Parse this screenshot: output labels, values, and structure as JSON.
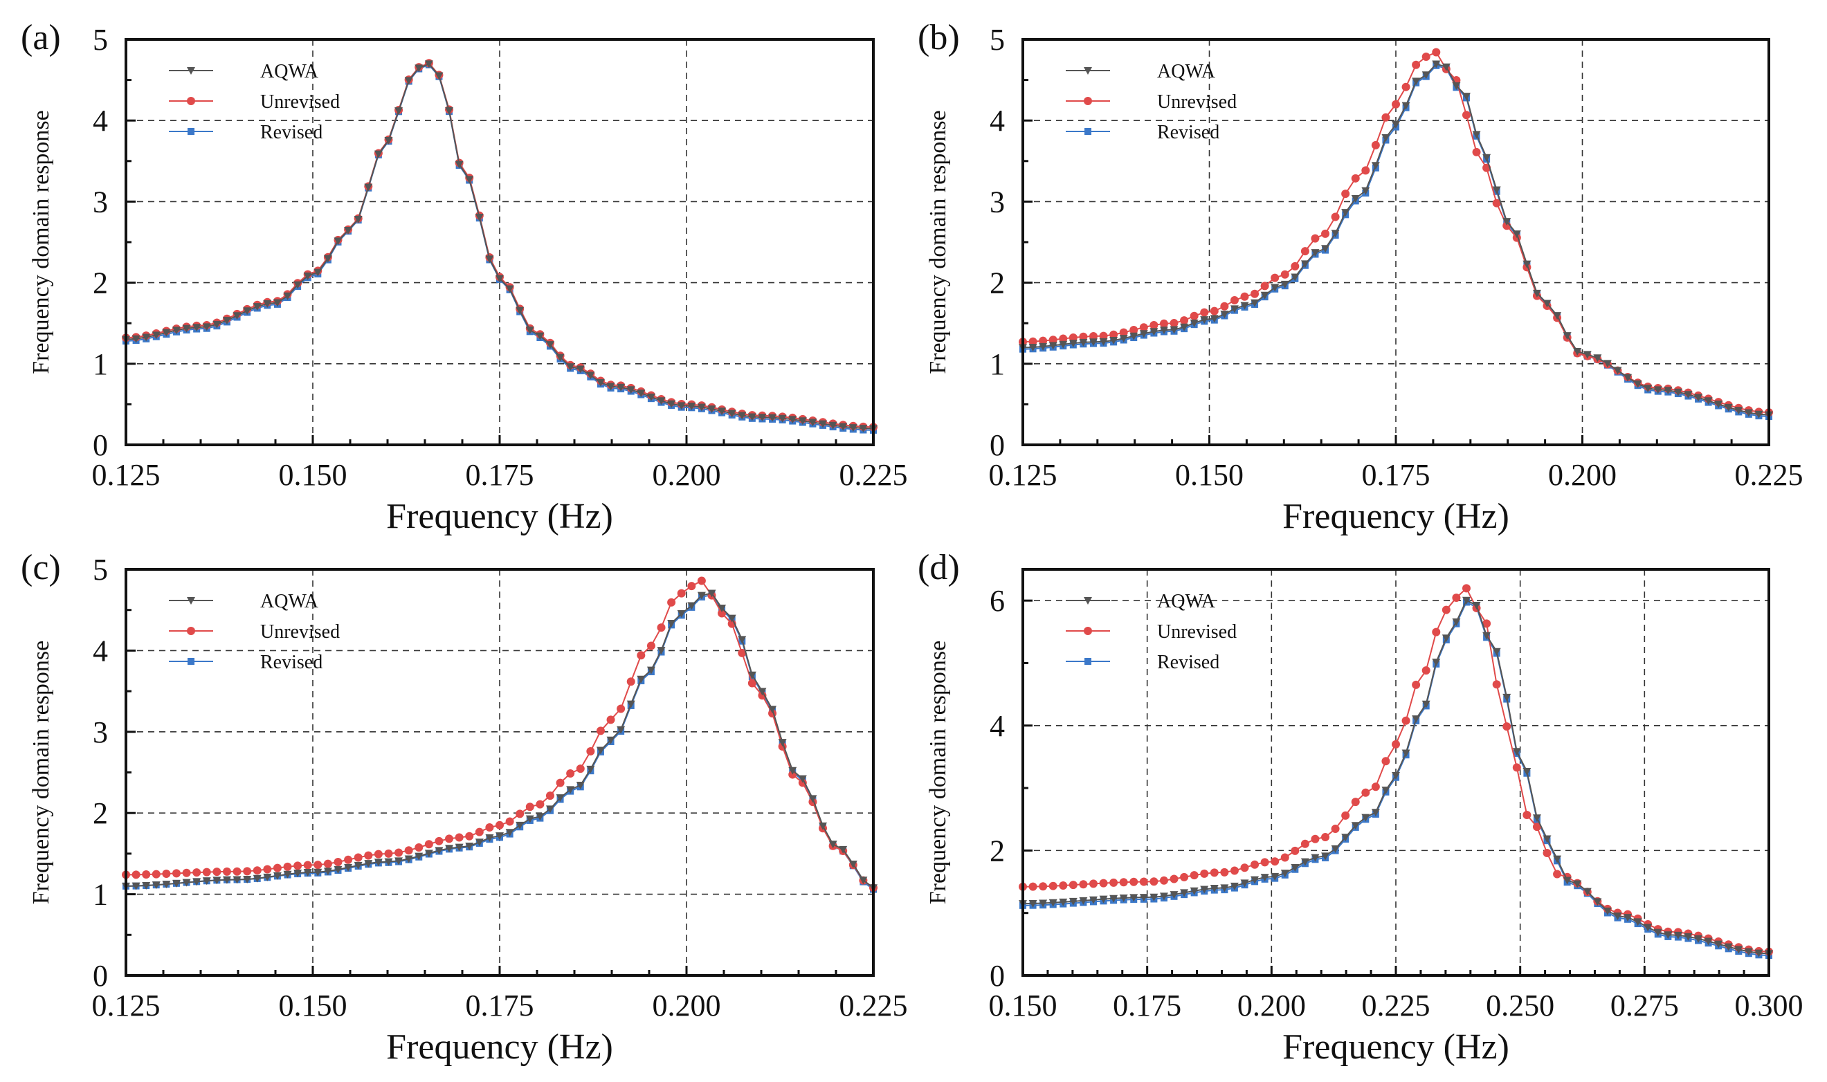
{
  "chart_data": [
    {
      "type": "line",
      "panel": "(a)",
      "xlabel": "Frequency (Hz)",
      "ylabel": "Frequency domain response",
      "xlim": [
        0.125,
        0.225
      ],
      "ylim": [
        0,
        5
      ],
      "xticks": [
        "0.125",
        "0.150",
        "0.175",
        "0.200",
        "0.225"
      ],
      "yticks": [
        "0",
        "1",
        "2",
        "3",
        "4",
        "5"
      ],
      "grid": true,
      "legend": "top-left",
      "series": [
        {
          "name": "AQWA",
          "color": "#555555",
          "marker": "triangle-down",
          "x": [
            0.125,
            0.135,
            0.145,
            0.15,
            0.155,
            0.16,
            0.163,
            0.165,
            0.167,
            0.17,
            0.175,
            0.18,
            0.185,
            0.19,
            0.2,
            0.21,
            0.225
          ],
          "y": [
            1.3,
            1.45,
            1.75,
            2.1,
            2.65,
            3.75,
            4.5,
            4.73,
            4.55,
            3.4,
            2.05,
            1.35,
            0.95,
            0.72,
            0.48,
            0.34,
            0.2
          ]
        },
        {
          "name": "Unrevised",
          "color": "#e04a4a",
          "marker": "circle",
          "x": [
            0.125,
            0.135,
            0.145,
            0.15,
            0.155,
            0.16,
            0.163,
            0.165,
            0.167,
            0.17,
            0.175,
            0.18,
            0.185,
            0.19,
            0.2,
            0.21,
            0.225
          ],
          "y": [
            1.32,
            1.47,
            1.77,
            2.12,
            2.66,
            3.76,
            4.51,
            4.74,
            4.56,
            3.42,
            2.07,
            1.37,
            0.97,
            0.74,
            0.5,
            0.36,
            0.22
          ]
        },
        {
          "name": "Revised",
          "color": "#3b78c9",
          "marker": "square",
          "x": [
            0.125,
            0.135,
            0.145,
            0.15,
            0.155,
            0.16,
            0.163,
            0.165,
            0.167,
            0.17,
            0.175,
            0.18,
            0.185,
            0.19,
            0.2,
            0.21,
            0.225
          ],
          "y": [
            1.28,
            1.43,
            1.73,
            2.08,
            2.64,
            3.74,
            4.49,
            4.72,
            4.54,
            3.39,
            2.04,
            1.33,
            0.93,
            0.7,
            0.46,
            0.32,
            0.18
          ]
        }
      ]
    },
    {
      "type": "line",
      "panel": "(b)",
      "xlabel": "Frequency (Hz)",
      "ylabel": "Frequency domain response",
      "xlim": [
        0.125,
        0.225
      ],
      "ylim": [
        0,
        5
      ],
      "xticks": [
        "0.125",
        "0.150",
        "0.175",
        "0.200",
        "0.225"
      ],
      "yticks": [
        "0",
        "1",
        "2",
        "3",
        "4",
        "5"
      ],
      "grid": true,
      "legend": "top-left",
      "series": [
        {
          "name": "AQWA",
          "color": "#555555",
          "marker": "triangle-down",
          "x": [
            0.125,
            0.135,
            0.145,
            0.15,
            0.155,
            0.16,
            0.165,
            0.17,
            0.175,
            0.178,
            0.181,
            0.184,
            0.187,
            0.19,
            0.195,
            0.2,
            0.21,
            0.225
          ],
          "y": [
            1.2,
            1.27,
            1.42,
            1.55,
            1.72,
            1.98,
            2.4,
            3.05,
            3.95,
            4.5,
            4.72,
            4.35,
            3.55,
            2.75,
            1.75,
            1.12,
            0.68,
            0.37
          ]
        },
        {
          "name": "Unrevised",
          "color": "#e04a4a",
          "marker": "circle",
          "x": [
            0.125,
            0.135,
            0.145,
            0.15,
            0.155,
            0.16,
            0.165,
            0.17,
            0.175,
            0.178,
            0.18,
            0.183,
            0.186,
            0.19,
            0.195,
            0.2,
            0.21,
            0.225
          ],
          "y": [
            1.27,
            1.34,
            1.5,
            1.64,
            1.83,
            2.1,
            2.58,
            3.3,
            4.2,
            4.7,
            4.86,
            4.5,
            3.6,
            2.7,
            1.72,
            1.1,
            0.7,
            0.4
          ]
        },
        {
          "name": "Revised",
          "color": "#3b78c9",
          "marker": "square",
          "x": [
            0.125,
            0.135,
            0.145,
            0.15,
            0.155,
            0.16,
            0.165,
            0.17,
            0.175,
            0.178,
            0.181,
            0.184,
            0.187,
            0.19,
            0.195,
            0.2,
            0.21,
            0.225
          ],
          "y": [
            1.18,
            1.25,
            1.4,
            1.53,
            1.7,
            1.96,
            2.38,
            3.02,
            3.92,
            4.48,
            4.7,
            4.33,
            3.53,
            2.73,
            1.73,
            1.1,
            0.66,
            0.35
          ]
        }
      ]
    },
    {
      "type": "line",
      "panel": "(c)",
      "xlabel": "Frequency (Hz)",
      "ylabel": "Frequency domain response",
      "xlim": [
        0.125,
        0.225
      ],
      "ylim": [
        0,
        5
      ],
      "xticks": [
        "0.125",
        "0.150",
        "0.175",
        "0.200",
        "0.225"
      ],
      "yticks": [
        "0",
        "1",
        "2",
        "3",
        "4",
        "5"
      ],
      "grid": true,
      "legend": "top-left",
      "series": [
        {
          "name": "AQWA",
          "color": "#555555",
          "marker": "triangle-down",
          "x": [
            0.125,
            0.14,
            0.15,
            0.16,
            0.17,
            0.175,
            0.18,
            0.185,
            0.19,
            0.195,
            0.199,
            0.203,
            0.206,
            0.21,
            0.215,
            0.22,
            0.225
          ],
          "y": [
            1.1,
            1.18,
            1.27,
            1.4,
            1.58,
            1.72,
            1.95,
            2.3,
            2.9,
            3.75,
            4.45,
            4.72,
            4.4,
            3.5,
            2.45,
            1.6,
            1.08
          ]
        },
        {
          "name": "Unrevised",
          "color": "#e04a4a",
          "marker": "circle",
          "x": [
            0.125,
            0.14,
            0.15,
            0.16,
            0.17,
            0.175,
            0.18,
            0.185,
            0.19,
            0.195,
            0.199,
            0.202,
            0.205,
            0.21,
            0.215,
            0.22,
            0.225
          ],
          "y": [
            1.24,
            1.28,
            1.36,
            1.5,
            1.7,
            1.85,
            2.1,
            2.5,
            3.15,
            4.05,
            4.7,
            4.86,
            4.45,
            3.45,
            2.4,
            1.58,
            1.08
          ]
        },
        {
          "name": "Revised",
          "color": "#3b78c9",
          "marker": "square",
          "x": [
            0.125,
            0.14,
            0.15,
            0.16,
            0.17,
            0.175,
            0.18,
            0.185,
            0.19,
            0.195,
            0.199,
            0.203,
            0.206,
            0.21,
            0.215,
            0.22,
            0.225
          ],
          "y": [
            1.1,
            1.18,
            1.26,
            1.39,
            1.57,
            1.7,
            1.93,
            2.28,
            2.88,
            3.73,
            4.43,
            4.7,
            4.38,
            3.48,
            2.43,
            1.58,
            1.06
          ]
        }
      ]
    },
    {
      "type": "line",
      "panel": "(d)",
      "xlabel": "Frequency (Hz)",
      "ylabel": "Frequency domain response",
      "xlim": [
        0.15,
        0.3
      ],
      "ylim": [
        0,
        6.5
      ],
      "xticks": [
        "0.150",
        "0.175",
        "0.200",
        "0.225",
        "0.250",
        "0.275",
        "0.300"
      ],
      "yticks": [
        "0",
        "2",
        "4",
        "6"
      ],
      "grid": true,
      "legend": "top-left",
      "series": [
        {
          "name": "AQWA",
          "color": "#555555",
          "marker": "triangle-down",
          "x": [
            0.15,
            0.175,
            0.19,
            0.2,
            0.21,
            0.22,
            0.225,
            0.23,
            0.235,
            0.24,
            0.245,
            0.25,
            0.255,
            0.26,
            0.27,
            0.28,
            0.3
          ],
          "y": [
            1.15,
            1.25,
            1.4,
            1.58,
            1.9,
            2.55,
            3.2,
            4.2,
            5.4,
            6.05,
            5.2,
            3.5,
            2.2,
            1.5,
            0.95,
            0.65,
            0.35
          ]
        },
        {
          "name": "Unrevised",
          "color": "#e04a4a",
          "marker": "circle",
          "x": [
            0.15,
            0.175,
            0.19,
            0.2,
            0.21,
            0.22,
            0.225,
            0.23,
            0.235,
            0.239,
            0.243,
            0.247,
            0.252,
            0.258,
            0.27,
            0.28,
            0.3
          ],
          "y": [
            1.42,
            1.5,
            1.65,
            1.82,
            2.2,
            2.95,
            3.7,
            4.75,
            5.85,
            6.2,
            5.65,
            4.0,
            2.5,
            1.6,
            1.0,
            0.7,
            0.38
          ]
        },
        {
          "name": "Revised",
          "color": "#3b78c9",
          "marker": "square",
          "x": [
            0.15,
            0.175,
            0.19,
            0.2,
            0.21,
            0.22,
            0.225,
            0.23,
            0.235,
            0.24,
            0.245,
            0.25,
            0.255,
            0.26,
            0.27,
            0.28,
            0.3
          ],
          "y": [
            1.12,
            1.22,
            1.37,
            1.55,
            1.87,
            2.52,
            3.17,
            4.17,
            5.37,
            6.02,
            5.17,
            3.47,
            2.17,
            1.47,
            0.92,
            0.62,
            0.32
          ]
        }
      ]
    }
  ]
}
